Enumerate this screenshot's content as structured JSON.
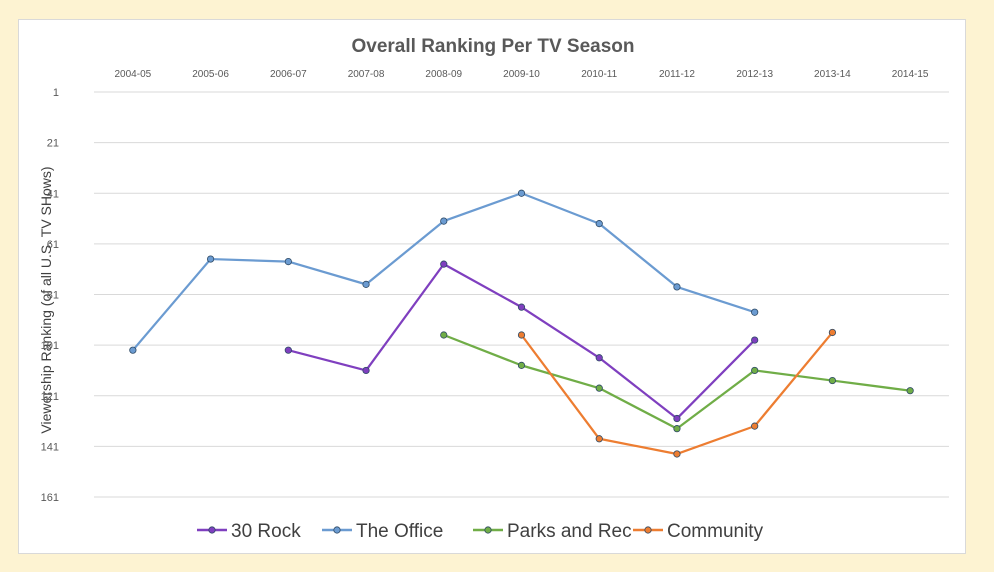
{
  "chart_data": {
    "type": "line",
    "title": "Overall Ranking Per TV Season",
    "xlabel": "",
    "ylabel": "Viewership Ranking (of all U.S. TV SHows)",
    "categories": [
      "2004-05",
      "2005-06",
      "2006-07",
      "2007-08",
      "2008-09",
      "2009-10",
      "2010-11",
      "2011-12",
      "2012-13",
      "2013-14",
      "2014-15"
    ],
    "x_tick_labels": [
      "2004-05",
      "2005-06",
      "2006-07",
      "2007-08",
      "2008-09",
      "2009-10",
      "2010-11",
      "2011-12",
      "2012-13",
      "2013-14",
      "2014-15"
    ],
    "y_ticks": [
      1,
      21,
      41,
      61,
      81,
      101,
      121,
      141,
      161
    ],
    "ylim": [
      1,
      161
    ],
    "y_inverted": true,
    "grid": true,
    "legend_position": "bottom",
    "series": [
      {
        "name": "30 Rock",
        "color": "#7f3fbf",
        "values": [
          null,
          null,
          103,
          111,
          69,
          86,
          106,
          130,
          99,
          null,
          null
        ]
      },
      {
        "name": "The Office",
        "color": "#6b9bd1",
        "values": [
          103,
          67,
          68,
          77,
          52,
          41,
          53,
          78,
          88,
          null,
          null
        ]
      },
      {
        "name": "Parks and Rec",
        "color": "#70ad47",
        "values": [
          null,
          null,
          null,
          null,
          97,
          109,
          118,
          134,
          111,
          115,
          119
        ]
      },
      {
        "name": "Community",
        "color": "#ed7d31",
        "values": [
          null,
          null,
          null,
          null,
          null,
          97,
          138,
          144,
          133,
          96,
          null
        ]
      }
    ]
  }
}
